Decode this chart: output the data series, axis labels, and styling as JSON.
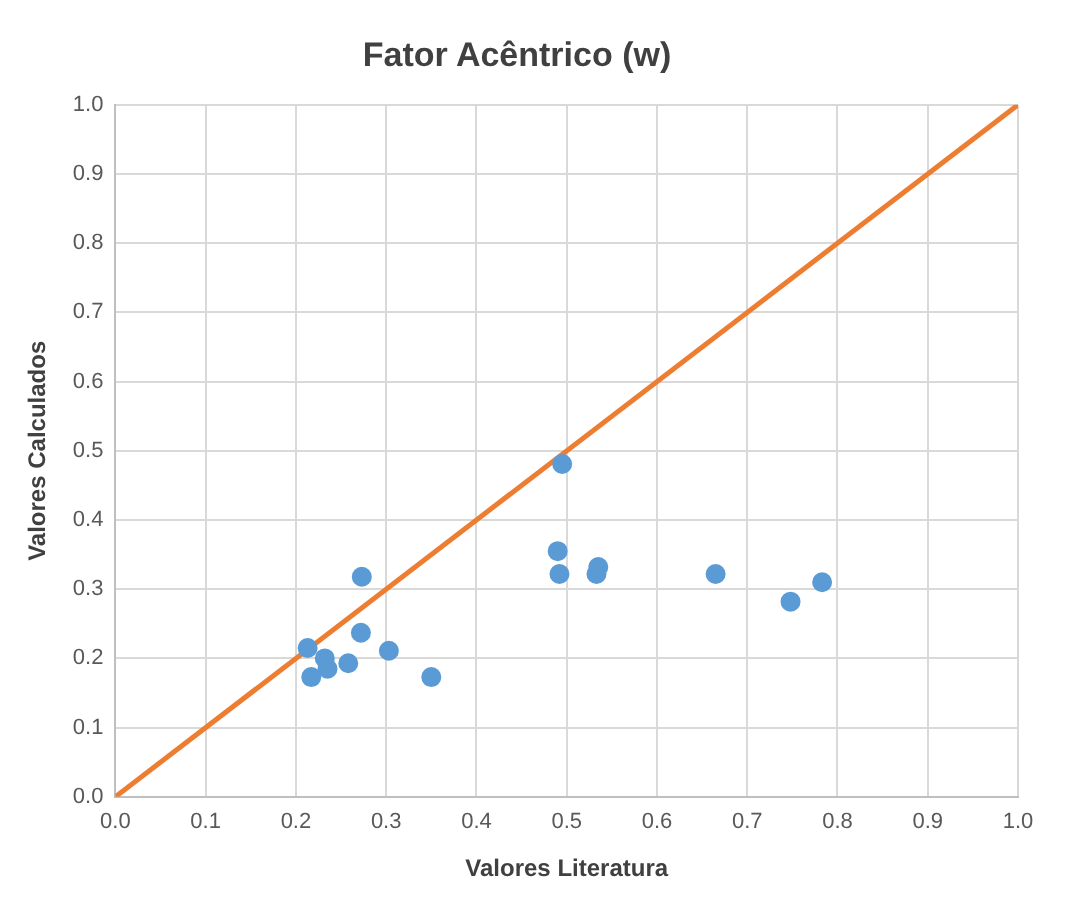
{
  "chart_data": {
    "type": "scatter",
    "title": "Fator Acêntrico (w)",
    "xlabel": "Valores Literatura",
    "ylabel": "Valores Calculados",
    "xlim": [
      0,
      1
    ],
    "ylim": [
      0,
      1
    ],
    "xticks": [
      {
        "value": 0,
        "label": "0.0"
      },
      {
        "value": 0.1,
        "label": "0.1"
      },
      {
        "value": 0.2,
        "label": "0.2"
      },
      {
        "value": 0.3,
        "label": "0.3"
      },
      {
        "value": 0.4,
        "label": "0.4"
      },
      {
        "value": 0.5,
        "label": "0.5"
      },
      {
        "value": 0.6,
        "label": "0.6"
      },
      {
        "value": 0.7,
        "label": "0.7"
      },
      {
        "value": 0.8,
        "label": "0.8"
      },
      {
        "value": 0.9,
        "label": "0.9"
      },
      {
        "value": 1,
        "label": "1.0"
      }
    ],
    "yticks": [
      {
        "value": 0,
        "label": "0.0"
      },
      {
        "value": 0.1,
        "label": "0.1"
      },
      {
        "value": 0.2,
        "label": "0.2"
      },
      {
        "value": 0.3,
        "label": "0.3"
      },
      {
        "value": 0.4,
        "label": "0.4"
      },
      {
        "value": 0.5,
        "label": "0.5"
      },
      {
        "value": 0.6,
        "label": "0.6"
      },
      {
        "value": 0.7,
        "label": "0.7"
      },
      {
        "value": 0.8,
        "label": "0.8"
      },
      {
        "value": 0.9,
        "label": "0.9"
      },
      {
        "value": 1,
        "label": "1.0"
      }
    ],
    "grid": true,
    "legend": false,
    "marker": "circle",
    "series": [
      {
        "color": "#5b9bd5",
        "x": [
          0.213,
          0.217,
          0.232,
          0.235,
          0.258,
          0.272,
          0.273,
          0.303,
          0.35,
          0.49,
          0.492,
          0.495,
          0.533,
          0.535,
          0.665,
          0.748,
          0.783
        ],
        "values": [
          0.215,
          0.173,
          0.2,
          0.185,
          0.193,
          0.237,
          0.318,
          0.211,
          0.173,
          0.355,
          0.322,
          0.481,
          0.322,
          0.332,
          0.322,
          0.282,
          0.31
        ]
      },
      {
        "type": "line",
        "color": "#ed7d31",
        "x": [
          0,
          1
        ],
        "values": [
          0,
          1
        ],
        "marker": "none",
        "line_style": "solid"
      }
    ]
  }
}
